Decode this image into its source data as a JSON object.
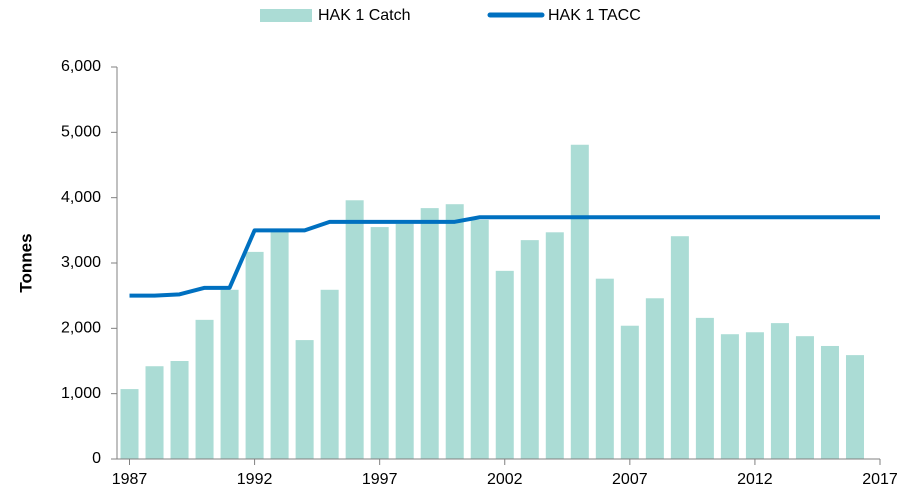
{
  "chart_data": {
    "type": "bar+line",
    "y_label": "Tonnes",
    "x": [
      1987,
      1988,
      1989,
      1990,
      1991,
      1992,
      1993,
      1994,
      1995,
      1996,
      1997,
      1998,
      1999,
      2000,
      2001,
      2002,
      2003,
      2004,
      2005,
      2006,
      2007,
      2008,
      2009,
      2010,
      2011,
      2012,
      2013,
      2014,
      2015,
      2016,
      2017
    ],
    "series": [
      {
        "name": "HAK 1 Catch",
        "type": "bar",
        "color": "#abdcd5",
        "values": [
          1070,
          1420,
          1500,
          2130,
          2590,
          3170,
          3490,
          1820,
          2590,
          3960,
          3550,
          3600,
          3840,
          3900,
          3660,
          2880,
          3350,
          3470,
          4810,
          2760,
          2040,
          2460,
          3410,
          2160,
          1910,
          1940,
          2080,
          1880,
          1730,
          1590,
          null
        ]
      },
      {
        "name": "HAK 1 TACC",
        "type": "line",
        "color": "#0070c0",
        "values": [
          2500,
          2500,
          2520,
          2620,
          2620,
          3500,
          3500,
          3500,
          3630,
          3630,
          3630,
          3630,
          3630,
          3630,
          3700,
          3700,
          3700,
          3700,
          3700,
          3700,
          3700,
          3700,
          3700,
          3700,
          3700,
          3700,
          3700,
          3700,
          3700,
          3700,
          3700
        ]
      }
    ],
    "xlim": [
      1986.5,
      2017
    ],
    "xticks": [
      1987,
      1992,
      1997,
      2002,
      2007,
      2012,
      2017
    ],
    "ylim": [
      0,
      6000
    ],
    "yticks": [
      0,
      {
        "value": 1000,
        "label": "1,000"
      },
      {
        "value": 2000,
        "label": "2,000"
      },
      {
        "value": 3000,
        "label": "3,000"
      },
      {
        "value": 4000,
        "label": "4,000"
      },
      {
        "value": 5000,
        "label": "5,000"
      },
      {
        "value": 6000,
        "label": "6,000"
      }
    ],
    "legend": "top"
  }
}
